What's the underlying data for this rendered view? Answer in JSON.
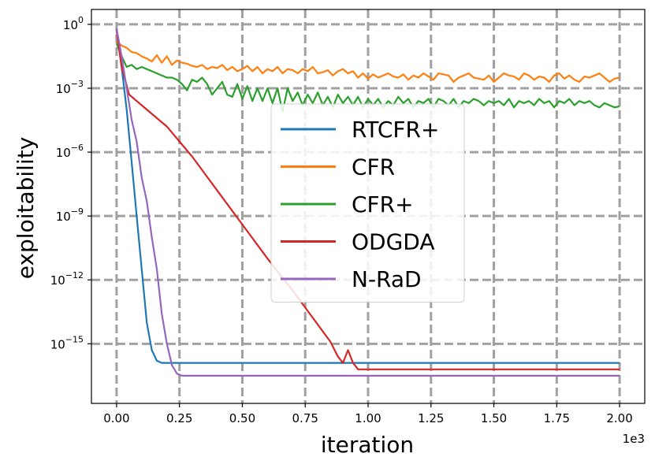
{
  "chart_data": {
    "type": "line",
    "title": "",
    "xlabel": "iteration",
    "ylabel": "exploitability",
    "x_scale_note": "1e3",
    "xlim": [
      -0.1,
      2.1
    ],
    "ylim_log10": [
      -17.8,
      0.7
    ],
    "x_ticks": [
      0.0,
      0.25,
      0.5,
      0.75,
      1.0,
      1.25,
      1.5,
      1.75,
      2.0
    ],
    "x_tick_labels": [
      "0.00",
      "0.25",
      "0.50",
      "0.75",
      "1.00",
      "1.25",
      "1.50",
      "1.75",
      "2.00"
    ],
    "y_ticks_log10": [
      0,
      -3,
      -6,
      -9,
      -12,
      -15
    ],
    "y_tick_labels": [
      {
        "base": "10",
        "exp": "0"
      },
      {
        "base": "10",
        "exp": "−3"
      },
      {
        "base": "10",
        "exp": "−6"
      },
      {
        "base": "10",
        "exp": "−9"
      },
      {
        "base": "10",
        "exp": "−12"
      },
      {
        "base": "10",
        "exp": "−15"
      }
    ],
    "grid": true,
    "legend_position": "center-right",
    "series": [
      {
        "name": "RTCFR+",
        "color": "#1f77b4",
        "x": [
          0,
          0.02,
          0.04,
          0.06,
          0.08,
          0.1,
          0.12,
          0.14,
          0.16,
          0.18,
          0.2,
          2.0
        ],
        "log10_y": [
          -0.2,
          -2.0,
          -4.0,
          -6.5,
          -9.0,
          -11.5,
          -14.0,
          -15.3,
          -15.8,
          -15.9,
          -15.9,
          -15.9
        ]
      },
      {
        "name": "CFR",
        "color": "#ff7f0e",
        "x": [
          0,
          0.02,
          0.04,
          0.06,
          0.08,
          0.1,
          0.12,
          0.14,
          0.16,
          0.18,
          0.2,
          0.22,
          0.24,
          0.26,
          0.28,
          0.3,
          0.32,
          0.34,
          0.36,
          0.38,
          0.4,
          0.42,
          0.44,
          0.46,
          0.48,
          0.5,
          0.52,
          0.54,
          0.56,
          0.58,
          0.6,
          0.62,
          0.64,
          0.66,
          0.68,
          0.7,
          0.72,
          0.74,
          0.76,
          0.78,
          0.8,
          0.82,
          0.84,
          0.86,
          0.88,
          0.9,
          0.92,
          0.94,
          0.96,
          0.98,
          1.0,
          1.02,
          1.04,
          1.06,
          1.08,
          1.1,
          1.12,
          1.14,
          1.16,
          1.18,
          1.2,
          1.22,
          1.24,
          1.26,
          1.28,
          1.3,
          1.32,
          1.34,
          1.36,
          1.38,
          1.4,
          1.42,
          1.44,
          1.46,
          1.48,
          1.5,
          1.52,
          1.54,
          1.56,
          1.58,
          1.6,
          1.62,
          1.64,
          1.66,
          1.68,
          1.7,
          1.72,
          1.74,
          1.76,
          1.78,
          1.8,
          1.82,
          1.84,
          1.86,
          1.88,
          1.9,
          1.92,
          1.94,
          1.96,
          1.98,
          2.0
        ],
        "log10_y": [
          -0.8,
          -1.0,
          -1.1,
          -1.3,
          -1.35,
          -1.5,
          -1.6,
          -1.75,
          -1.45,
          -1.8,
          -1.5,
          -1.9,
          -1.7,
          -1.8,
          -1.85,
          -1.95,
          -2.0,
          -1.9,
          -2.1,
          -2.0,
          -2.05,
          -1.9,
          -2.15,
          -2.0,
          -2.2,
          -2.1,
          -1.95,
          -2.2,
          -2.0,
          -2.3,
          -2.1,
          -2.2,
          -2.0,
          -2.3,
          -2.1,
          -2.15,
          -2.3,
          -2.1,
          -2.2,
          -2.0,
          -2.3,
          -2.25,
          -2.15,
          -2.4,
          -2.2,
          -2.1,
          -2.3,
          -2.2,
          -2.5,
          -2.3,
          -2.55,
          -2.35,
          -2.5,
          -2.4,
          -2.3,
          -2.45,
          -2.5,
          -2.35,
          -2.6,
          -2.4,
          -2.5,
          -2.3,
          -2.45,
          -2.6,
          -2.3,
          -2.35,
          -2.4,
          -2.7,
          -2.5,
          -2.4,
          -2.3,
          -2.5,
          -2.55,
          -2.6,
          -2.4,
          -2.7,
          -2.5,
          -2.3,
          -2.4,
          -2.45,
          -2.6,
          -2.3,
          -2.4,
          -2.6,
          -2.45,
          -2.5,
          -2.7,
          -2.4,
          -2.3,
          -2.55,
          -2.4,
          -2.6,
          -2.7,
          -2.45,
          -2.5,
          -2.4,
          -2.3,
          -2.5,
          -2.7,
          -2.55,
          -2.5
        ]
      },
      {
        "name": "CFR+",
        "color": "#2ca02c",
        "x": [
          0,
          0.02,
          0.04,
          0.06,
          0.08,
          0.1,
          0.12,
          0.14,
          0.16,
          0.18,
          0.2,
          0.22,
          0.24,
          0.26,
          0.28,
          0.3,
          0.32,
          0.34,
          0.36,
          0.38,
          0.4,
          0.42,
          0.44,
          0.46,
          0.48,
          0.5,
          0.52,
          0.54,
          0.56,
          0.58,
          0.6,
          0.62,
          0.64,
          0.66,
          0.68,
          0.7,
          0.72,
          0.74,
          0.76,
          0.78,
          0.8,
          0.82,
          0.84,
          0.86,
          0.88,
          0.9,
          0.92,
          0.94,
          0.96,
          0.98,
          1.0,
          1.02,
          1.04,
          1.06,
          1.08,
          1.1,
          1.12,
          1.14,
          1.16,
          1.18,
          1.2,
          1.22,
          1.24,
          1.26,
          1.28,
          1.3,
          1.32,
          1.34,
          1.36,
          1.38,
          1.4,
          1.42,
          1.44,
          1.46,
          1.48,
          1.5,
          1.52,
          1.54,
          1.56,
          1.58,
          1.6,
          1.62,
          1.64,
          1.66,
          1.68,
          1.7,
          1.72,
          1.74,
          1.76,
          1.78,
          1.8,
          1.82,
          1.84,
          1.86,
          1.88,
          1.9,
          1.92,
          1.94,
          1.96,
          1.98,
          2.0
        ],
        "log10_y": [
          -0.9,
          -1.5,
          -2.0,
          -1.9,
          -2.1,
          -2.0,
          -2.1,
          -2.2,
          -2.3,
          -2.4,
          -2.5,
          -2.5,
          -2.6,
          -2.8,
          -3.1,
          -2.6,
          -2.7,
          -2.5,
          -2.8,
          -3.3,
          -3.0,
          -2.7,
          -3.3,
          -3.4,
          -2.8,
          -3.5,
          -2.9,
          -3.6,
          -3.0,
          -3.6,
          -3.0,
          -3.7,
          -3.0,
          -4.1,
          -3.0,
          -3.6,
          -3.2,
          -3.8,
          -3.3,
          -3.7,
          -3.2,
          -3.8,
          -3.4,
          -3.9,
          -3.3,
          -3.7,
          -3.4,
          -3.8,
          -3.4,
          -3.9,
          -3.5,
          -3.8,
          -3.5,
          -3.9,
          -3.6,
          -3.8,
          -3.4,
          -3.7,
          -3.5,
          -3.9,
          -3.6,
          -3.7,
          -3.5,
          -3.9,
          -3.5,
          -3.6,
          -3.8,
          -3.5,
          -3.9,
          -3.6,
          -3.7,
          -3.5,
          -3.6,
          -3.8,
          -3.6,
          -3.7,
          -3.6,
          -3.8,
          -3.5,
          -3.9,
          -3.6,
          -3.7,
          -3.6,
          -3.8,
          -3.5,
          -3.7,
          -3.6,
          -3.9,
          -3.6,
          -3.7,
          -3.5,
          -3.8,
          -3.6,
          -3.7,
          -3.6,
          -3.8,
          -3.9,
          -3.7,
          -3.8,
          -3.9,
          -3.85
        ]
      },
      {
        "name": "ODGDA",
        "color": "#d62728",
        "x": [
          0,
          0.02,
          0.05,
          0.08,
          0.1,
          0.2,
          0.3,
          0.4,
          0.5,
          0.6,
          0.7,
          0.8,
          0.85,
          0.88,
          0.9,
          0.92,
          0.94,
          0.96,
          1.0,
          2.0
        ],
        "log10_y": [
          -0.3,
          -2.0,
          -3.3,
          -3.6,
          -3.8,
          -4.8,
          -6.2,
          -7.8,
          -9.4,
          -11.0,
          -12.5,
          -14.1,
          -14.9,
          -15.6,
          -15.9,
          -15.3,
          -15.9,
          -16.2,
          -16.2,
          -16.2
        ]
      },
      {
        "name": "N-RaD",
        "color": "#9467bd",
        "x": [
          0,
          0.02,
          0.04,
          0.06,
          0.08,
          0.1,
          0.12,
          0.14,
          0.16,
          0.18,
          0.2,
          0.22,
          0.24,
          0.26,
          2.0
        ],
        "log10_y": [
          -0.2,
          -1.5,
          -3.0,
          -4.5,
          -5.5,
          -7.2,
          -8.3,
          -10.0,
          -11.5,
          -13.6,
          -15.0,
          -16.0,
          -16.4,
          -16.5,
          -16.5
        ]
      }
    ]
  }
}
